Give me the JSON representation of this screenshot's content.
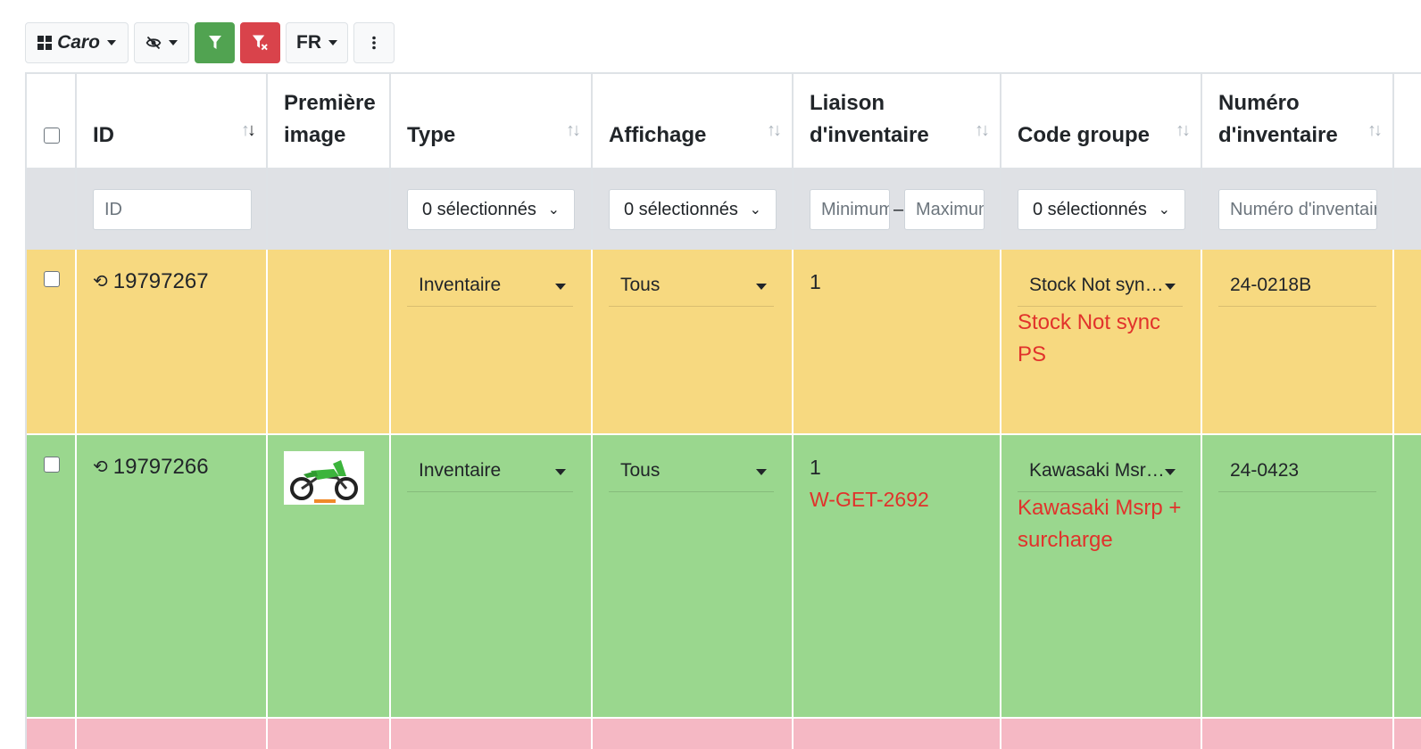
{
  "toolbar": {
    "layout_label": "Caro",
    "lang_label": "FR",
    "hide_icon": "eye-slash-icon",
    "filter_icon": "funnel-icon",
    "clear_filter_icon": "funnel-x-icon",
    "more_icon": "kebab-icon",
    "filter_color": "#51a351",
    "clear_color": "#d9434b"
  },
  "columns": {
    "id": "ID",
    "image": "Première image",
    "type": "Type",
    "display": "Affichage",
    "link": "Liaison d'inventaire",
    "group": "Code groupe",
    "inv_number": "Numéro d'inventaire"
  },
  "filters": {
    "id_placeholder": "ID",
    "type_selected": "0 sélectionnés",
    "display_selected": "0 sélectionnés",
    "link_min_placeholder": "Minimum",
    "link_max_placeholder": "Maximum",
    "group_selected": "0 sélectionnés",
    "inv_placeholder": "Numéro d'inventaire"
  },
  "rows": [
    {
      "id": "19797267",
      "type": "Inventaire",
      "display": "Tous",
      "link": "1",
      "link_ref": "",
      "group_select": "Stock Not sync PS",
      "group_note": "Stock Not sync PS",
      "inv_number": "24-0218B",
      "color": "#f7d980"
    },
    {
      "id": "19797266",
      "type": "Inventaire",
      "display": "Tous",
      "link": "1",
      "link_ref": "W-GET-2692",
      "group_select": "Kawasaki Msrp + surcharge",
      "group_note": "Kawasaki Msrp + surcharge",
      "inv_number": "24-0423",
      "color": "#9ad78e"
    }
  ]
}
